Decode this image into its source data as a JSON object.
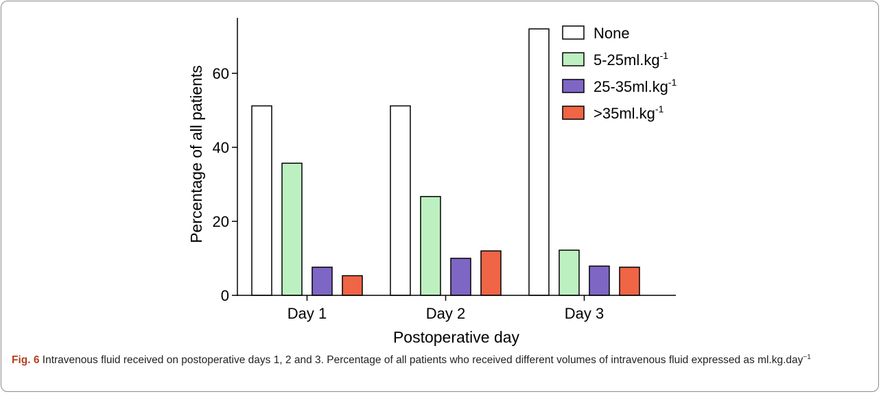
{
  "chart_data": {
    "type": "bar",
    "categories": [
      "Day 1",
      "Day 2",
      "Day 3"
    ],
    "series": [
      {
        "name": "None",
        "unit_sup": "",
        "color": "#ffffff",
        "values": [
          51.2,
          51.2,
          72.0
        ]
      },
      {
        "name": "5-25ml.kg",
        "unit_sup": "-1",
        "color": "#bdf0c1",
        "values": [
          35.7,
          26.7,
          12.2
        ]
      },
      {
        "name": "25-35ml.kg",
        "unit_sup": "-1",
        "color": "#7e66c5",
        "values": [
          7.6,
          10.0,
          7.9
        ]
      },
      {
        "name": ">35ml.kg",
        "unit_sup": "-1",
        "color": "#ef6546",
        "values": [
          5.3,
          12.0,
          7.6
        ]
      }
    ],
    "xlabel": "Postoperative day",
    "ylabel": "Percentage of all patients",
    "ylim": [
      0,
      75
    ],
    "yticks": [
      0,
      20,
      40,
      60
    ],
    "grid": false,
    "legend_position": "top-right"
  },
  "caption": {
    "label": "Fig. 6",
    "text": " Intravenous fluid received on postoperative days 1, 2 and 3. Percentage of all patients who received different volumes of intravenous fluid expressed as ml.kg.day",
    "sup": "−1"
  }
}
